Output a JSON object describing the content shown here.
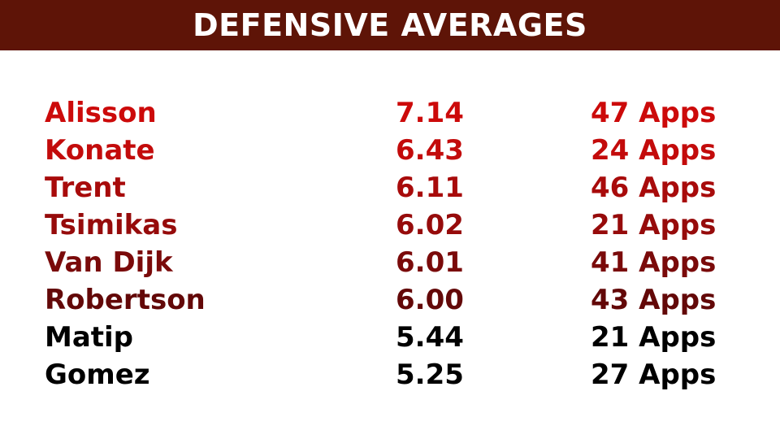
{
  "title": "DEFENSIVE AVERAGES",
  "rows": [
    {
      "name": "Alisson",
      "avg": "7.14",
      "apps": "47 Apps",
      "color": "#cc0a0a"
    },
    {
      "name": "Konate",
      "avg": "6.43",
      "apps": "24 Apps",
      "color": "#c30b0b"
    },
    {
      "name": "Trent",
      "avg": "6.11",
      "apps": "46 Apps",
      "color": "#a80b0b"
    },
    {
      "name": "Tsimikas",
      "avg": "6.02",
      "apps": "21 Apps",
      "color": "#960b0b"
    },
    {
      "name": "Van Dijk",
      "avg": "6.01",
      "apps": "41 Apps",
      "color": "#7a0a0a"
    },
    {
      "name": "Robertson",
      "avg": "6.00",
      "apps": "43 Apps",
      "color": "#630808"
    },
    {
      "name": "Matip",
      "avg": "5.44",
      "apps": "21 Apps",
      "color": "#000000"
    },
    {
      "name": "Gomez",
      "avg": "5.25",
      "apps": "27 Apps",
      "color": "#000000"
    }
  ]
}
